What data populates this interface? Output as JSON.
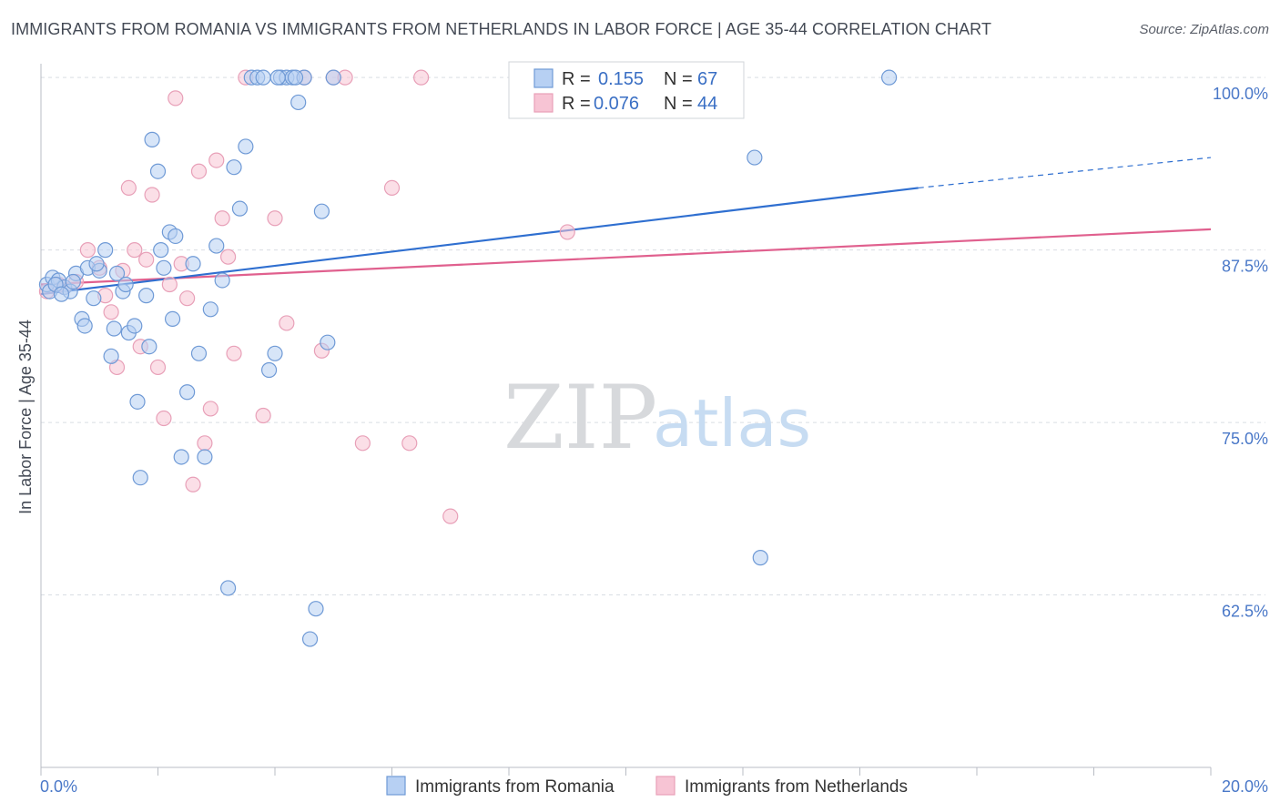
{
  "title": "IMMIGRANTS FROM ROMANIA VS IMMIGRANTS FROM NETHERLANDS IN LABOR FORCE | AGE 35-44 CORRELATION CHART",
  "source": "Source: ZipAtlas.com",
  "watermark": {
    "zip": "ZIP",
    "atlas": "atlas"
  },
  "colors": {
    "romania_fill": "#b7d0f3",
    "romania_stroke": "#6f9ad6",
    "romania_line": "#2f6fd0",
    "netherlands_fill": "#f7c4d4",
    "netherlands_stroke": "#e8a0b8",
    "netherlands_line": "#e0608e",
    "tick_text": "#4a78c8",
    "grid": "#d9dde3"
  },
  "legend": {
    "r_label": "R = ",
    "n_label": "N = ",
    "romania": {
      "r": "0.155",
      "n": "67"
    },
    "netherlands": {
      "r": "0.076",
      "n": "44"
    }
  },
  "chart_data": {
    "type": "scatter",
    "title": "IMMIGRANTS FROM ROMANIA VS IMMIGRANTS FROM NETHERLANDS IN LABOR FORCE | AGE 35-44 CORRELATION CHART",
    "xlabel": "",
    "ylabel": "In Labor Force | Age 35-44",
    "xlim": [
      0,
      20
    ],
    "ylim": [
      50,
      101
    ],
    "x_tick_labels": [
      "0.0%",
      "20.0%"
    ],
    "x_tick_values": [
      0,
      20
    ],
    "y_ticks": [
      62.5,
      75.0,
      87.5,
      100.0
    ],
    "y_tick_labels": [
      "62.5%",
      "75.0%",
      "87.5%",
      "100.0%"
    ],
    "grid": true,
    "legend_position": "top-center",
    "series": [
      {
        "name": "Immigrants from Romania",
        "x": [
          0.1,
          0.2,
          0.3,
          0.4,
          0.5,
          0.6,
          0.7,
          0.8,
          0.9,
          1.0,
          1.1,
          1.2,
          1.3,
          1.4,
          1.5,
          1.6,
          1.7,
          1.8,
          1.9,
          2.0,
          2.1,
          2.2,
          2.3,
          2.4,
          2.5,
          2.6,
          2.7,
          2.8,
          2.9,
          3.0,
          3.1,
          3.2,
          3.3,
          3.4,
          3.5,
          3.6,
          3.7,
          3.8,
          3.9,
          4.0,
          4.1,
          4.2,
          4.3,
          4.4,
          4.5,
          4.6,
          4.7,
          4.8,
          4.9,
          5.0,
          0.15,
          0.25,
          0.35,
          0.55,
          0.75,
          0.95,
          1.25,
          1.45,
          1.65,
          1.85,
          2.05,
          2.25,
          12.2,
          12.3,
          14.5,
          4.05,
          4.35
        ],
        "y": [
          85.0,
          85.5,
          85.3,
          84.8,
          84.5,
          85.8,
          82.5,
          86.2,
          84.0,
          86.0,
          87.5,
          79.8,
          85.8,
          84.5,
          81.5,
          82.0,
          71.0,
          84.2,
          95.5,
          93.2,
          86.2,
          88.8,
          88.5,
          72.5,
          77.2,
          86.5,
          80.0,
          72.5,
          83.2,
          87.8,
          85.3,
          63.0,
          93.5,
          90.5,
          95.0,
          100.0,
          100.0,
          100.0,
          78.8,
          80.0,
          100.0,
          100.0,
          100.0,
          98.2,
          100.0,
          59.3,
          61.5,
          90.3,
          80.8,
          100.0,
          84.5,
          85.0,
          84.3,
          85.2,
          82.0,
          86.5,
          81.8,
          85.0,
          76.5,
          80.5,
          87.5,
          82.5,
          94.2,
          65.2,
          100.0,
          100.0,
          100.0
        ]
      },
      {
        "name": "Immigrants from Netherlands",
        "x": [
          0.1,
          0.3,
          0.4,
          0.6,
          0.8,
          1.0,
          1.1,
          1.2,
          1.3,
          1.4,
          1.5,
          1.6,
          1.7,
          1.8,
          1.9,
          2.0,
          2.1,
          2.2,
          2.3,
          2.4,
          2.5,
          2.6,
          2.7,
          2.8,
          2.9,
          3.0,
          3.1,
          3.2,
          3.3,
          3.5,
          3.8,
          4.0,
          4.2,
          4.5,
          4.8,
          5.0,
          5.2,
          5.5,
          6.0,
          6.3,
          6.5,
          7.0,
          9.0,
          11.0
        ],
        "y": [
          84.5,
          85.0,
          84.8,
          85.2,
          87.5,
          86.2,
          84.2,
          83.0,
          79.0,
          86.0,
          92.0,
          87.5,
          80.5,
          86.8,
          91.5,
          79.0,
          75.3,
          85.0,
          98.5,
          86.5,
          84.0,
          70.5,
          93.2,
          73.5,
          76.0,
          94.0,
          89.8,
          87.0,
          80.0,
          100.0,
          75.5,
          89.8,
          82.2,
          100.0,
          80.2,
          100.0,
          100.0,
          73.5,
          92.0,
          73.5,
          100.0,
          68.2,
          88.8,
          100.0
        ]
      }
    ],
    "trend_lines": [
      {
        "name": "Immigrants from Romania",
        "x": [
          0,
          15
        ],
        "y": [
          84.3,
          92.0
        ],
        "dashed_extension_to": [
          20,
          94.2
        ]
      },
      {
        "name": "Immigrants from Netherlands",
        "x": [
          0,
          20
        ],
        "y": [
          85.0,
          89.0
        ]
      }
    ]
  },
  "bottom_legend": [
    {
      "label": "Immigrants from Romania"
    },
    {
      "label": "Immigrants from Netherlands"
    }
  ]
}
